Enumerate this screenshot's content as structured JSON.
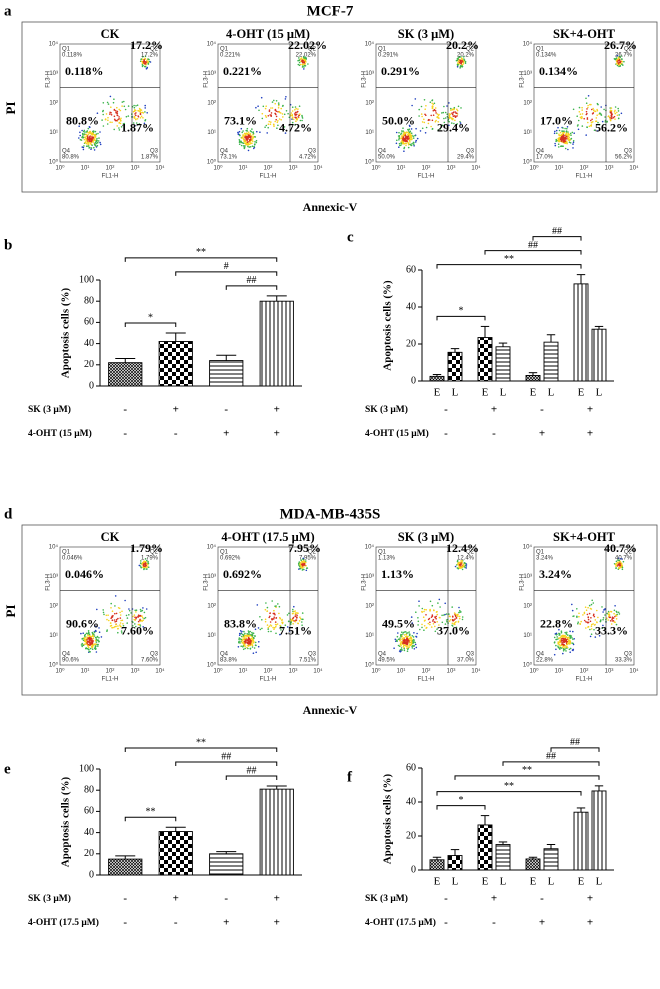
{
  "flow_panels": [
    {
      "label": "a",
      "title": "MCF-7",
      "y_label": "PI",
      "x_label": "Annexic-V",
      "plot_y_label": "FL3-H",
      "plot_x_label": "FL1-H",
      "tick_labels": [
        "10⁰",
        "10¹",
        "10²",
        "10³",
        "10⁴"
      ],
      "plots": [
        {
          "title": "CK",
          "quadrants": [
            {
              "name": "Q1",
              "value": "0.118%"
            },
            {
              "name": "Q2",
              "value": "17.2%"
            },
            {
              "name": "Q3",
              "value": "1.87%"
            },
            {
              "name": "Q4",
              "value": "80.8%"
            }
          ]
        },
        {
          "title": "4-OHT (15 μM)",
          "quadrants": [
            {
              "name": "Q1",
              "value": "0.221%"
            },
            {
              "name": "Q2",
              "value": "22.02%"
            },
            {
              "name": "Q3",
              "value": "4.72%"
            },
            {
              "name": "Q4",
              "value": "73.1%"
            }
          ]
        },
        {
          "title": "SK (3 μM)",
          "quadrants": [
            {
              "name": "Q1",
              "value": "0.291%"
            },
            {
              "name": "Q2",
              "value": "20.2%"
            },
            {
              "name": "Q3",
              "value": "29.4%"
            },
            {
              "name": "Q4",
              "value": "50.0%"
            }
          ]
        },
        {
          "title": "SK+4-OHT",
          "quadrants": [
            {
              "name": "Q1",
              "value": "0.134%"
            },
            {
              "name": "Q2",
              "value": "26.7%"
            },
            {
              "name": "Q3",
              "value": "56.2%"
            },
            {
              "name": "Q4",
              "value": "17.0%"
            }
          ]
        }
      ]
    },
    {
      "label": "d",
      "title": "MDA-MB-435S",
      "y_label": "PI",
      "x_label": "Annexic-V",
      "plot_y_label": "FL3-H",
      "plot_x_label": "FL1-H",
      "tick_labels": [
        "10⁰",
        "10¹",
        "10²",
        "10³",
        "10⁴"
      ],
      "plots": [
        {
          "title": "CK",
          "quadrants": [
            {
              "name": "Q1",
              "value": "0.046%"
            },
            {
              "name": "Q2",
              "value": "1.79%"
            },
            {
              "name": "Q3",
              "value": "7.60%"
            },
            {
              "name": "Q4",
              "value": "90.6%"
            }
          ]
        },
        {
          "title": "4-OHT (17.5 μM)",
          "quadrants": [
            {
              "name": "Q1",
              "value": "0.692%"
            },
            {
              "name": "Q2",
              "value": "7.95%"
            },
            {
              "name": "Q3",
              "value": "7.51%"
            },
            {
              "name": "Q4",
              "value": "83.8%"
            }
          ]
        },
        {
          "title": "SK (3 μM)",
          "quadrants": [
            {
              "name": "Q1",
              "value": "1.13%"
            },
            {
              "name": "Q2",
              "value": "12.4%"
            },
            {
              "name": "Q3",
              "value": "37.0%"
            },
            {
              "name": "Q4",
              "value": "49.5%"
            }
          ]
        },
        {
          "title": "SK+4-OHT",
          "quadrants": [
            {
              "name": "Q1",
              "value": "3.24%"
            },
            {
              "name": "Q2",
              "value": "40.7%"
            },
            {
              "name": "Q3",
              "value": "33.3%"
            },
            {
              "name": "Q4",
              "value": "22.8%"
            }
          ]
        }
      ]
    }
  ],
  "chart_data": [
    {
      "type": "bar",
      "label": "b",
      "ylabel": "Apoptosis cells (%)",
      "values": [
        22,
        42,
        24,
        80
      ],
      "errors": [
        4,
        8,
        5,
        5
      ],
      "fills": [
        "cross",
        "check",
        "hstripe",
        "vstripe"
      ],
      "ylim": [
        0,
        100
      ],
      "yticks": [
        0,
        20,
        40,
        60,
        80,
        100
      ],
      "significance": [
        {
          "text": "*",
          "from": 0,
          "to": 1
        },
        {
          "text": "##",
          "from": 2,
          "to": 3
        },
        {
          "text": "#",
          "from": 1,
          "to": 3
        },
        {
          "text": "**",
          "from": 0,
          "to": 3
        }
      ],
      "conditions": [
        {
          "name": "SK (3 μM)",
          "values": [
            "-",
            "+",
            "-",
            "+"
          ]
        },
        {
          "name": "4-OHT (15 μM)",
          "values": [
            "-",
            "-",
            "+",
            "+"
          ]
        }
      ]
    },
    {
      "type": "bar",
      "label": "c",
      "ylabel": "Apoptosis cells (%)",
      "categories": [
        "E",
        "L",
        "E",
        "L",
        "E",
        "L",
        "E",
        "L"
      ],
      "values": [
        2.5,
        15.5,
        23.5,
        18.5,
        3,
        21,
        52.5,
        28
      ],
      "errors": [
        1,
        2,
        6,
        2,
        1.5,
        4,
        5,
        1.5
      ],
      "fills": [
        "cross",
        "check",
        "check",
        "hstripe",
        "cross",
        "hstripe",
        "vstripe",
        "vstripe"
      ],
      "ylim": [
        0,
        60
      ],
      "yticks": [
        0,
        20,
        40,
        60
      ],
      "significance": [
        {
          "text": "*",
          "from": 0,
          "to": 2
        },
        {
          "text": "**",
          "from": 0,
          "to": 6
        },
        {
          "text": "##",
          "from": 2,
          "to": 6
        },
        {
          "text": "##",
          "from": 4,
          "to": 6
        }
      ],
      "conditions": [
        {
          "name": "SK (3 μM)",
          "values": [
            "-",
            "+",
            "-",
            "+"
          ]
        },
        {
          "name": "4-OHT (15 μM)",
          "values": [
            "-",
            "-",
            "+",
            "+"
          ]
        }
      ]
    },
    {
      "type": "bar",
      "label": "e",
      "ylabel": "Apoptosis cells (%)",
      "values": [
        15,
        41,
        20,
        81
      ],
      "errors": [
        3,
        4,
        2,
        3
      ],
      "fills": [
        "cross",
        "check",
        "hstripe",
        "vstripe"
      ],
      "ylim": [
        0,
        100
      ],
      "yticks": [
        0,
        20,
        40,
        60,
        80,
        100
      ],
      "significance": [
        {
          "text": "**",
          "from": 0,
          "to": 1
        },
        {
          "text": "##",
          "from": 2,
          "to": 3
        },
        {
          "text": "##",
          "from": 1,
          "to": 3
        },
        {
          "text": "**",
          "from": 0,
          "to": 3
        }
      ],
      "conditions": [
        {
          "name": "SK (3 μM)",
          "values": [
            "-",
            "+",
            "-",
            "+"
          ]
        },
        {
          "name": "4-OHT (17.5 μM)",
          "values": [
            "-",
            "-",
            "+",
            "+"
          ]
        }
      ]
    },
    {
      "type": "bar",
      "label": "f",
      "ylabel": "Apoptosis cells (%)",
      "categories": [
        "E",
        "L",
        "E",
        "L",
        "E",
        "L",
        "E",
        "L"
      ],
      "values": [
        6,
        8.5,
        26.5,
        15,
        6.5,
        12.5,
        34,
        46.5
      ],
      "errors": [
        1.5,
        3.5,
        5.5,
        1.5,
        1,
        2.5,
        2.5,
        3
      ],
      "fills": [
        "cross",
        "check",
        "check",
        "hstripe",
        "cross",
        "hstripe",
        "vstripe",
        "vstripe"
      ],
      "ylim": [
        0,
        60
      ],
      "yticks": [
        0,
        20,
        40,
        60
      ],
      "significance": [
        {
          "text": "*",
          "from": 0,
          "to": 2
        },
        {
          "text": "**",
          "from": 0,
          "to": 6
        },
        {
          "text": "**",
          "from": 1,
          "to": 7
        },
        {
          "text": "##",
          "from": 3,
          "to": 7
        },
        {
          "text": "##",
          "from": 5,
          "to": 7
        }
      ],
      "conditions": [
        {
          "name": "SK (3 μM)",
          "values": [
            "-",
            "+",
            "-",
            "+"
          ]
        },
        {
          "name": "4-OHT (17.5 μM)",
          "values": [
            "-",
            "-",
            "+",
            "+"
          ]
        }
      ]
    }
  ]
}
